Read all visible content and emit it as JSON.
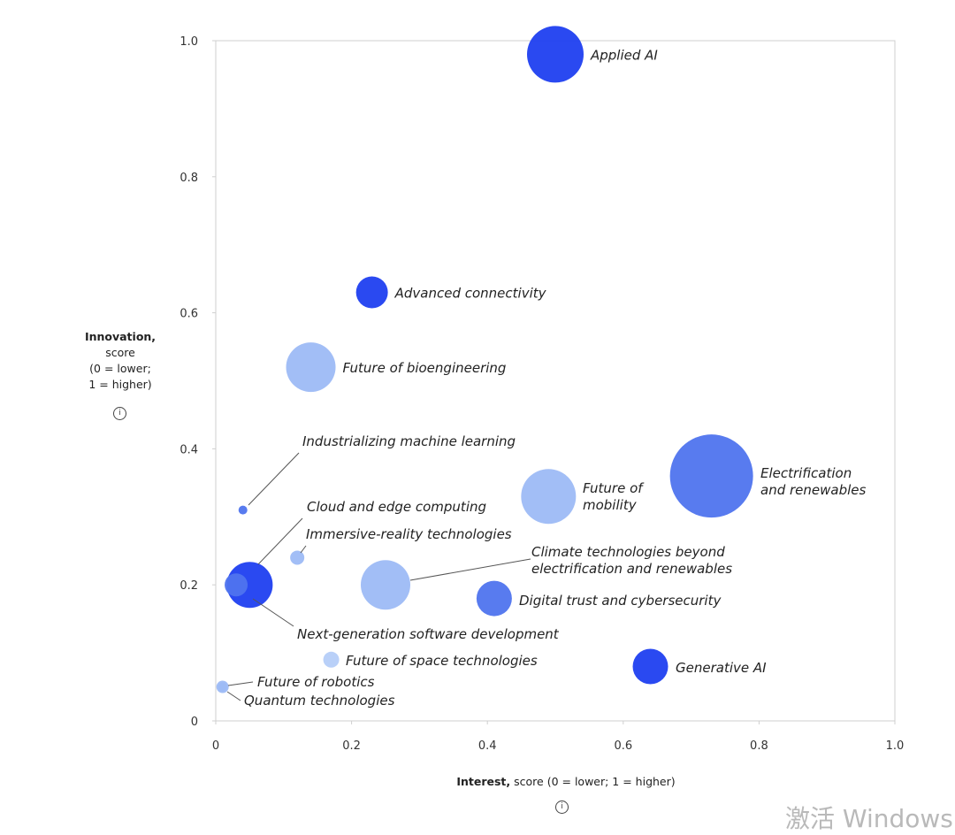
{
  "chart_data": {
    "type": "bubble",
    "title": "",
    "xlabel_bold": "Interest,",
    "xlabel_rest": "score (0 = lower; 1 = higher)",
    "ylabel_bold": "Innovation,",
    "ylabel_lines": [
      "score",
      "(0 = lower;",
      "1 = higher)"
    ],
    "info_symbol": "i",
    "xlim": [
      0,
      1.0
    ],
    "ylim": [
      0,
      1.0
    ],
    "xticks": [
      "0",
      "0.2",
      "0.4",
      "0.6",
      "0.8",
      "1.0"
    ],
    "yticks": [
      "0",
      "0.2",
      "0.4",
      "0.6",
      "0.8",
      "1.0"
    ],
    "grid": false,
    "colors": {
      "dark": "#1f3ff0",
      "medium": "#4f74ee",
      "light": "#9dbaf6",
      "lighter": "#b5cdf8"
    },
    "points": [
      {
        "label": [
          "Applied AI"
        ],
        "x": 0.5,
        "y": 0.98,
        "size": 32,
        "shade": "dark"
      },
      {
        "label": [
          "Advanced connectivity"
        ],
        "x": 0.23,
        "y": 0.63,
        "size": 18,
        "shade": "dark"
      },
      {
        "label": [
          "Future of bioengineering"
        ],
        "x": 0.14,
        "y": 0.52,
        "size": 28,
        "shade": "light"
      },
      {
        "label": [
          "Industrializing machine learning"
        ],
        "x": 0.04,
        "y": 0.31,
        "size": 5,
        "shade": "medium"
      },
      {
        "label": [
          "Electrification",
          "and renewables"
        ],
        "x": 0.73,
        "y": 0.36,
        "size": 47,
        "shade": "medium"
      },
      {
        "label": [
          "Future of",
          "mobility"
        ],
        "x": 0.49,
        "y": 0.33,
        "size": 31,
        "shade": "light"
      },
      {
        "label": [
          "Cloud and edge computing"
        ],
        "x": 0.05,
        "y": 0.2,
        "size": 26,
        "shade": "dark"
      },
      {
        "label": [
          "Immersive-reality technologies"
        ],
        "x": 0.12,
        "y": 0.24,
        "size": 8,
        "shade": "light"
      },
      {
        "label": [
          "Climate technologies beyond",
          "electrification and renewables"
        ],
        "x": 0.25,
        "y": 0.2,
        "size": 28,
        "shade": "light"
      },
      {
        "label": [
          "Next-generation software development"
        ],
        "x": 0.03,
        "y": 0.2,
        "size": 13,
        "shade": "medium"
      },
      {
        "label": [
          "Digital trust and cybersecurity"
        ],
        "x": 0.41,
        "y": 0.18,
        "size": 20,
        "shade": "medium"
      },
      {
        "label": [
          "Future of space technologies"
        ],
        "x": 0.17,
        "y": 0.09,
        "size": 9,
        "shade": "lighter"
      },
      {
        "label": [
          "Generative AI"
        ],
        "x": 0.64,
        "y": 0.08,
        "size": 20,
        "shade": "dark"
      },
      {
        "label": [
          "Future of robotics"
        ],
        "x": 0.01,
        "y": 0.05,
        "size": 7,
        "shade": "light"
      },
      {
        "label": [
          "Quantum technologies"
        ],
        "x": 0.01,
        "y": 0.05,
        "size": 5,
        "shade": "light"
      }
    ]
  },
  "watermark": "激活 Windows"
}
